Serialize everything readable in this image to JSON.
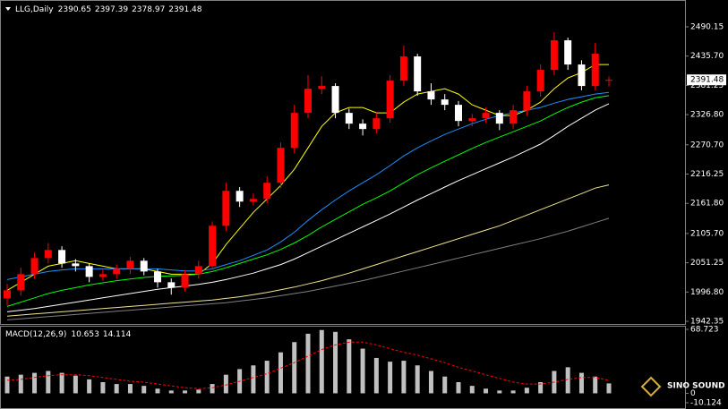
{
  "chart_data": [
    {
      "type": "candlestick",
      "title": "LLG,Daily",
      "up_color": "#ff0000",
      "down_color": "#ffffff",
      "open": [
        1985,
        2000,
        2030,
        2060,
        2075,
        2050,
        2045,
        2025,
        2030,
        2040,
        2055,
        2035,
        2015,
        2005,
        2030,
        2045,
        2120,
        2185,
        2165,
        2170,
        2200,
        2265,
        2330,
        2375,
        2380,
        2330,
        2310,
        2300,
        2320,
        2390,
        2435,
        2370,
        2355,
        2345,
        2315,
        2320,
        2330,
        2310,
        2335,
        2370,
        2410,
        2465,
        2420,
        2380,
        2390.65
      ],
      "high": [
        2012,
        2042,
        2070,
        2088,
        2082,
        2058,
        2050,
        2040,
        2048,
        2062,
        2060,
        2040,
        2022,
        2038,
        2055,
        2128,
        2200,
        2192,
        2180,
        2212,
        2275,
        2345,
        2400,
        2398,
        2385,
        2338,
        2318,
        2330,
        2400,
        2455,
        2440,
        2385,
        2365,
        2352,
        2328,
        2340,
        2335,
        2345,
        2380,
        2420,
        2480,
        2470,
        2428,
        2460,
        2397.39
      ],
      "low": [
        1972,
        1990,
        2022,
        2050,
        2042,
        2035,
        2015,
        2018,
        2022,
        2030,
        2028,
        2005,
        1992,
        1998,
        2022,
        2038,
        2110,
        2155,
        2158,
        2162,
        2190,
        2255,
        2320,
        2365,
        2320,
        2300,
        2288,
        2292,
        2312,
        2380,
        2362,
        2345,
        2335,
        2305,
        2305,
        2312,
        2298,
        2300,
        2325,
        2360,
        2400,
        2410,
        2372,
        2372,
        2378.97
      ],
      "close": [
        2000,
        2030,
        2060,
        2075,
        2050,
        2045,
        2025,
        2030,
        2040,
        2055,
        2035,
        2015,
        2005,
        2030,
        2045,
        2120,
        2185,
        2165,
        2170,
        2200,
        2265,
        2330,
        2375,
        2380,
        2330,
        2310,
        2300,
        2320,
        2390,
        2435,
        2370,
        2355,
        2345,
        2315,
        2320,
        2330,
        2310,
        2335,
        2370,
        2410,
        2465,
        2420,
        2380,
        2440,
        2391.48
      ],
      "series": [
        {
          "color": "#ffff00",
          "values": [
            2000,
            2015,
            2030,
            2045,
            2050,
            2055,
            2050,
            2045,
            2040,
            2040,
            2040,
            2035,
            2030,
            2030,
            2030,
            2050,
            2085,
            2115,
            2145,
            2170,
            2195,
            2225,
            2265,
            2305,
            2330,
            2340,
            2340,
            2330,
            2330,
            2350,
            2365,
            2370,
            2375,
            2365,
            2345,
            2335,
            2325,
            2325,
            2335,
            2350,
            2375,
            2395,
            2405,
            2420,
            2420
          ]
        },
        {
          "color": "#1e90ff",
          "values": [
            2020,
            2025,
            2030,
            2035,
            2038,
            2040,
            2040,
            2040,
            2040,
            2040,
            2040,
            2040,
            2038,
            2036,
            2036,
            2040,
            2048,
            2055,
            2065,
            2075,
            2090,
            2108,
            2130,
            2150,
            2168,
            2185,
            2200,
            2215,
            2232,
            2250,
            2265,
            2278,
            2290,
            2300,
            2310,
            2318,
            2325,
            2330,
            2335,
            2340,
            2348,
            2355,
            2360,
            2365,
            2368
          ]
        },
        {
          "color": "#00ff00",
          "values": [
            1970,
            1978,
            1986,
            1994,
            2000,
            2005,
            2010,
            2014,
            2018,
            2021,
            2024,
            2026,
            2027,
            2028,
            2030,
            2035,
            2042,
            2050,
            2058,
            2066,
            2076,
            2088,
            2102,
            2118,
            2132,
            2146,
            2160,
            2172,
            2185,
            2200,
            2215,
            2228,
            2240,
            2252,
            2264,
            2275,
            2285,
            2295,
            2305,
            2315,
            2328,
            2340,
            2350,
            2358,
            2362
          ]
        },
        {
          "color": "#ffffff",
          "values": [
            1960,
            1963,
            1966,
            1970,
            1974,
            1978,
            1982,
            1986,
            1990,
            1994,
            1998,
            2002,
            2005,
            2008,
            2011,
            2015,
            2020,
            2026,
            2032,
            2040,
            2048,
            2058,
            2070,
            2082,
            2094,
            2106,
            2118,
            2130,
            2142,
            2155,
            2168,
            2180,
            2192,
            2204,
            2215,
            2226,
            2237,
            2248,
            2260,
            2272,
            2288,
            2305,
            2320,
            2335,
            2347
          ]
        },
        {
          "color": "#f0e68c",
          "values": [
            1952,
            1954,
            1956,
            1958,
            1960,
            1962,
            1964,
            1966,
            1968,
            1970,
            1972,
            1974,
            1976,
            1978,
            1980,
            1982,
            1985,
            1988,
            1992,
            1996,
            2001,
            2006,
            2012,
            2018,
            2025,
            2032,
            2040,
            2048,
            2056,
            2064,
            2072,
            2080,
            2088,
            2096,
            2104,
            2112,
            2120,
            2130,
            2140,
            2150,
            2160,
            2170,
            2180,
            2190,
            2196
          ]
        },
        {
          "color": "#808080",
          "values": [
            1945,
            1947,
            1949,
            1951,
            1953,
            1955,
            1957,
            1959,
            1961,
            1963,
            1965,
            1967,
            1969,
            1971,
            1973,
            1975,
            1977,
            1980,
            1983,
            1986,
            1990,
            1994,
            1998,
            2003,
            2008,
            2013,
            2018,
            2024,
            2030,
            2036,
            2042,
            2048,
            2054,
            2060,
            2066,
            2072,
            2078,
            2084,
            2090,
            2096,
            2103,
            2110,
            2118,
            2126,
            2134
          ]
        }
      ],
      "ylim": [
        1937.4,
        2538.3
      ],
      "yticks": [
        2490.15,
        {
          "value": 2435.7,
          "label": "2435.70"
        },
        2381.25,
        {
          "value": 2326.8,
          "label": "2326.80"
        },
        {
          "value": 2270.7,
          "label": "2270.70"
        },
        2216.25,
        {
          "value": 2161.8,
          "label": "2161.80"
        },
        {
          "value": 2105.7,
          "label": "2105.70"
        },
        2051.25,
        {
          "value": 1996.8,
          "label": "1996.80"
        },
        1942.35
      ]
    },
    {
      "type": "macd",
      "title": "MACD(12,26,9)",
      "series": [
        {
          "color": "#c0c0c0",
          "style": "histogram",
          "values": [
            18,
            20,
            22,
            24,
            22,
            19,
            15,
            12,
            10,
            10,
            8,
            5,
            3,
            3,
            4,
            10,
            20,
            26,
            30,
            35,
            44,
            55,
            64,
            68,
            66,
            58,
            48,
            38,
            34,
            35,
            30,
            24,
            18,
            12,
            8,
            5,
            3,
            3,
            6,
            12,
            24,
            28,
            22,
            18,
            10.653
          ]
        },
        {
          "color": "#ff0000",
          "style": "dashed",
          "values": [
            14,
            15,
            17,
            19,
            20,
            20,
            19,
            17,
            15,
            13,
            12,
            10,
            8,
            6,
            5,
            6,
            9,
            13,
            17,
            21,
            27,
            33,
            40,
            47,
            52,
            55,
            55,
            52,
            48,
            44,
            41,
            37,
            33,
            28,
            24,
            20,
            16,
            12,
            10,
            10,
            12,
            15,
            17,
            17,
            14.114
          ]
        }
      ],
      "ylim": [
        -10.124,
        68.723
      ],
      "yticks": [
        68.723,
        0,
        -10.124
      ]
    }
  ],
  "watermark": "SINO SOUND"
}
